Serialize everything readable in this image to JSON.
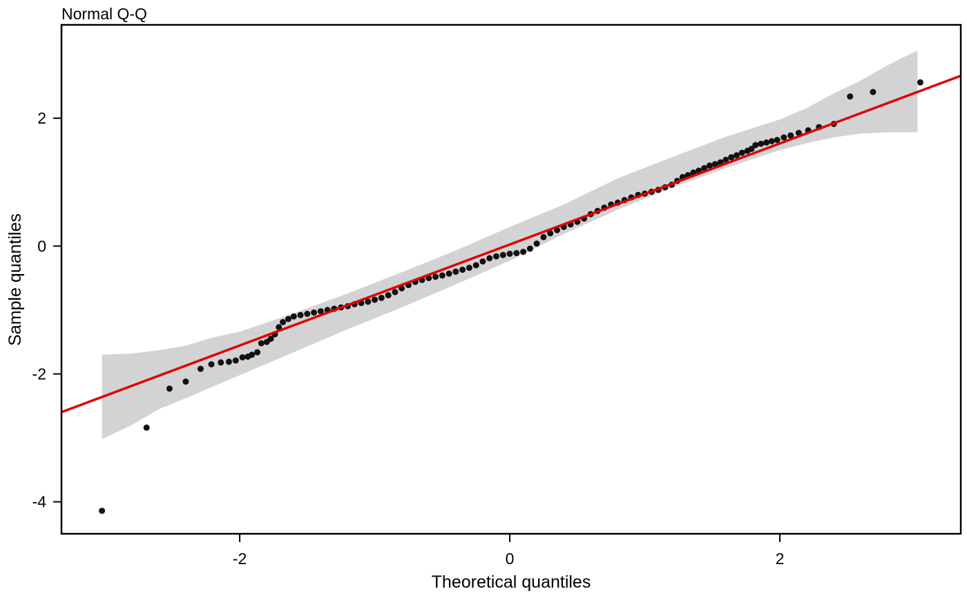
{
  "chart_data": {
    "type": "scatter",
    "title": "Normal Q-Q",
    "xlabel": "Theoretical quantiles",
    "ylabel": "Sample quantiles",
    "xlim": [
      -3.32,
      3.34
    ],
    "ylim": [
      -4.5,
      3.46
    ],
    "x_ticks": [
      -2,
      0,
      2
    ],
    "y_ticks": [
      -4,
      -2,
      0,
      2
    ],
    "x_tick_labels": [
      "-2",
      "0",
      "2"
    ],
    "y_tick_labels": [
      "-4",
      "-2",
      "0",
      "2"
    ],
    "grid": false,
    "reference_line": {
      "color": "#e00000",
      "intercept": 0.025,
      "slope": 0.79
    },
    "confidence_band": {
      "color": "#d3d3d3",
      "x": [
        -3.02,
        -2.8,
        -2.6,
        -2.4,
        -2.2,
        -2.0,
        -1.6,
        -1.2,
        -0.8,
        -0.4,
        0.0,
        0.4,
        0.8,
        1.2,
        1.6,
        2.0,
        2.2,
        2.4,
        2.6,
        2.8,
        3.02
      ],
      "lower": [
        -3.02,
        -2.8,
        -2.55,
        -2.38,
        -2.2,
        -2.02,
        -1.66,
        -1.3,
        -0.96,
        -0.6,
        -0.23,
        0.19,
        0.57,
        0.91,
        1.22,
        1.5,
        1.61,
        1.7,
        1.76,
        1.78,
        1.78
      ],
      "upper": [
        -1.7,
        -1.68,
        -1.63,
        -1.56,
        -1.43,
        -1.34,
        -1.05,
        -0.74,
        -0.41,
        -0.07,
        0.3,
        0.65,
        1.06,
        1.39,
        1.71,
        1.98,
        2.16,
        2.39,
        2.59,
        2.83,
        3.06
      ]
    },
    "series": [
      {
        "color": "#111111",
        "points": [
          [
            -3.02,
            -4.14
          ],
          [
            -2.69,
            -2.84
          ],
          [
            -2.52,
            -2.23
          ],
          [
            -2.4,
            -2.12
          ],
          [
            -2.29,
            -1.92
          ],
          [
            -2.21,
            -1.85
          ],
          [
            -2.14,
            -1.82
          ],
          [
            -2.08,
            -1.81
          ],
          [
            -2.03,
            -1.79
          ],
          [
            -1.98,
            -1.74
          ],
          [
            -1.94,
            -1.73
          ],
          [
            -1.91,
            -1.7
          ],
          [
            -1.87,
            -1.66
          ],
          [
            -1.84,
            -1.52
          ],
          [
            -1.8,
            -1.5
          ],
          [
            -1.77,
            -1.45
          ],
          [
            -1.74,
            -1.38
          ],
          [
            -1.71,
            -1.27
          ],
          [
            -1.68,
            -1.19
          ],
          [
            -1.64,
            -1.14
          ],
          [
            -1.6,
            -1.1
          ],
          [
            -1.55,
            -1.08
          ],
          [
            -1.5,
            -1.06
          ],
          [
            -1.45,
            -1.04
          ],
          [
            -1.4,
            -1.02
          ],
          [
            -1.35,
            -1.0
          ],
          [
            -1.3,
            -0.98
          ],
          [
            -1.25,
            -0.96
          ],
          [
            -1.2,
            -0.94
          ],
          [
            -1.15,
            -0.91
          ],
          [
            -1.1,
            -0.89
          ],
          [
            -1.05,
            -0.87
          ],
          [
            -1.0,
            -0.84
          ],
          [
            -0.95,
            -0.81
          ],
          [
            -0.9,
            -0.77
          ],
          [
            -0.85,
            -0.72
          ],
          [
            -0.8,
            -0.66
          ],
          [
            -0.75,
            -0.61
          ],
          [
            -0.7,
            -0.56
          ],
          [
            -0.65,
            -0.53
          ],
          [
            -0.6,
            -0.5
          ],
          [
            -0.55,
            -0.48
          ],
          [
            -0.5,
            -0.46
          ],
          [
            -0.45,
            -0.43
          ],
          [
            -0.4,
            -0.4
          ],
          [
            -0.35,
            -0.37
          ],
          [
            -0.3,
            -0.34
          ],
          [
            -0.25,
            -0.3
          ],
          [
            -0.2,
            -0.24
          ],
          [
            -0.15,
            -0.19
          ],
          [
            -0.1,
            -0.16
          ],
          [
            -0.05,
            -0.14
          ],
          [
            0.0,
            -0.12
          ],
          [
            0.05,
            -0.11
          ],
          [
            0.1,
            -0.09
          ],
          [
            0.15,
            -0.04
          ],
          [
            0.2,
            0.04
          ],
          [
            0.25,
            0.14
          ],
          [
            0.3,
            0.2
          ],
          [
            0.35,
            0.25
          ],
          [
            0.4,
            0.3
          ],
          [
            0.45,
            0.34
          ],
          [
            0.5,
            0.38
          ],
          [
            0.55,
            0.43
          ],
          [
            0.6,
            0.5
          ],
          [
            0.65,
            0.55
          ],
          [
            0.7,
            0.6
          ],
          [
            0.75,
            0.65
          ],
          [
            0.8,
            0.68
          ],
          [
            0.85,
            0.72
          ],
          [
            0.9,
            0.76
          ],
          [
            0.95,
            0.8
          ],
          [
            1.0,
            0.82
          ],
          [
            1.05,
            0.85
          ],
          [
            1.1,
            0.88
          ],
          [
            1.15,
            0.92
          ],
          [
            1.2,
            0.96
          ],
          [
            1.24,
            1.02
          ],
          [
            1.28,
            1.08
          ],
          [
            1.32,
            1.11
          ],
          [
            1.36,
            1.15
          ],
          [
            1.4,
            1.18
          ],
          [
            1.44,
            1.22
          ],
          [
            1.48,
            1.26
          ],
          [
            1.52,
            1.28
          ],
          [
            1.56,
            1.31
          ],
          [
            1.6,
            1.35
          ],
          [
            1.64,
            1.39
          ],
          [
            1.68,
            1.42
          ],
          [
            1.72,
            1.46
          ],
          [
            1.76,
            1.49
          ],
          [
            1.79,
            1.52
          ],
          [
            1.82,
            1.58
          ],
          [
            1.86,
            1.6
          ],
          [
            1.9,
            1.62
          ],
          [
            1.94,
            1.64
          ],
          [
            1.98,
            1.66
          ],
          [
            2.03,
            1.7
          ],
          [
            2.08,
            1.73
          ],
          [
            2.14,
            1.77
          ],
          [
            2.21,
            1.81
          ],
          [
            2.29,
            1.86
          ],
          [
            2.4,
            1.91
          ],
          [
            2.52,
            2.34
          ],
          [
            2.69,
            2.41
          ],
          [
            3.04,
            2.56
          ]
        ]
      }
    ]
  }
}
